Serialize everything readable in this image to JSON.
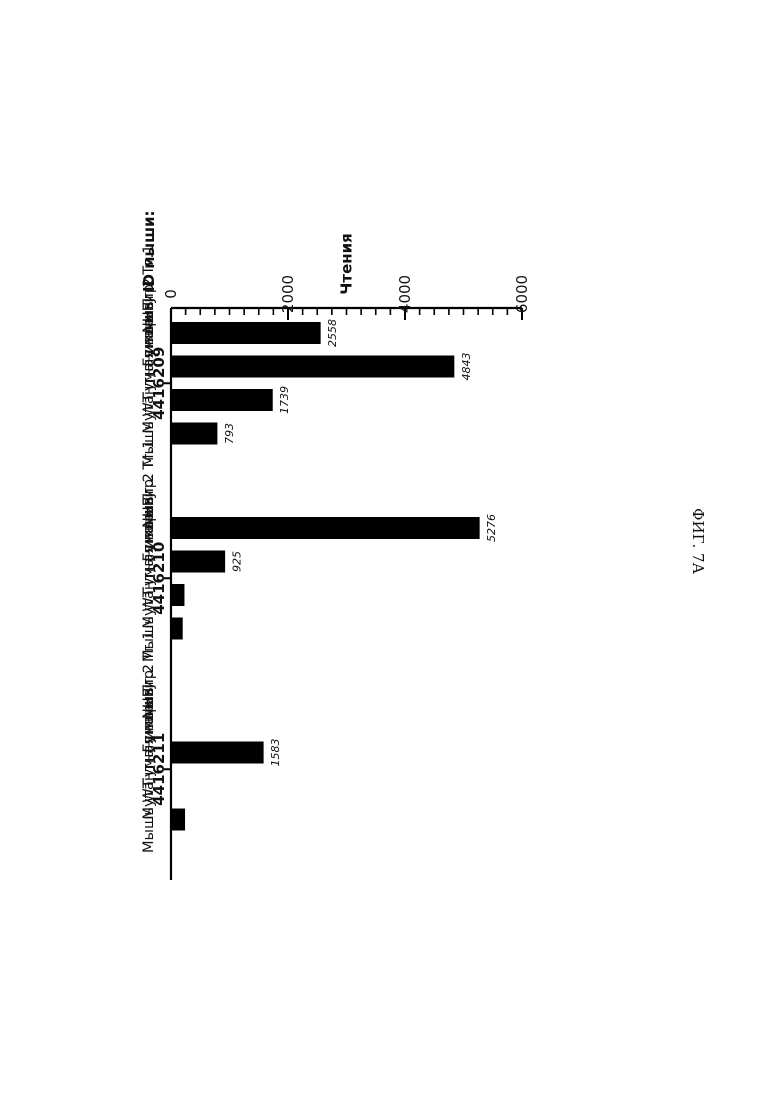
{
  "chart_data": {
    "type": "bar",
    "orientation": "horizontal-rotated-page",
    "ylabel": "Чтения",
    "xlabel": "ID мыши:",
    "ylim": [
      0,
      6000
    ],
    "yticks": [
      0,
      2000,
      4000,
      6000
    ],
    "groups": [
      {
        "id": "4416209",
        "bars": [
          {
            "label": "NHEJ",
            "value": 2558
          },
          {
            "label": "Гуманизир. Тг.1",
            "value": 4843
          },
          {
            "label": "Гуманизир. Тг.2",
            "value": 1739
          },
          {
            "label": "Мутантная мышь",
            "value": 793
          },
          {
            "label": "Мышь WT",
            "value": 0
          }
        ]
      },
      {
        "id": "4416210",
        "bars": [
          {
            "label": "NHEJ",
            "value": 5276
          },
          {
            "label": "Гуманизир. Тг.1",
            "value": 925
          },
          {
            "label": "Гуманизир. Тг.2",
            "value": 230
          },
          {
            "label": "Мутантная мышь",
            "value": 200
          },
          {
            "label": "Мышь WT",
            "value": 0
          }
        ]
      },
      {
        "id": "4416211",
        "bars": [
          {
            "label": "NHEJ",
            "value": 0
          },
          {
            "label": "Гуманизир. Тг.1",
            "value": 1583
          },
          {
            "label": "Гуманизир. Тг.2",
            "value": 0
          },
          {
            "label": "Мутантная мышь",
            "value": 240
          },
          {
            "label": "Мышь WT",
            "value": 0
          }
        ]
      }
    ],
    "value_labels": {
      "4416209": [
        "2558",
        "4843",
        "1739",
        "793",
        ""
      ],
      "4416210": [
        "5276",
        "925",
        "",
        "",
        ""
      ],
      "4416211": [
        "",
        "1583",
        "",
        "",
        ""
      ]
    },
    "grid": false,
    "legend": "none",
    "bar_color": "#000000"
  },
  "caption": "ФИГ. 7А"
}
